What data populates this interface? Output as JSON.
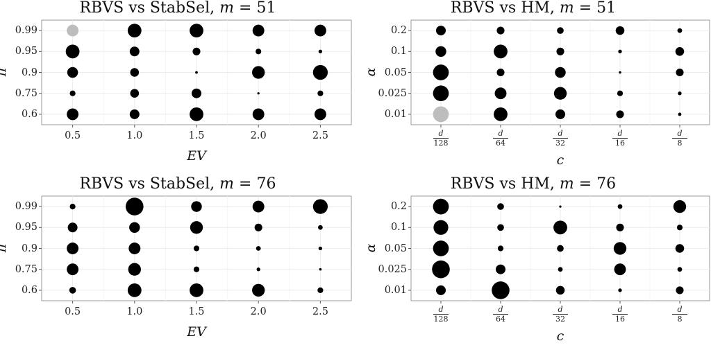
{
  "colors": {
    "panel_bg": "#ffffff",
    "grid": "#ebebeb",
    "point": "#000000",
    "highlight": "#bdbdbd"
  },
  "chart_data": [
    {
      "type": "scatter",
      "title": "RBVS vs StabSel, m = 51",
      "title_parts": {
        "text": "RBVS vs StabSel, ",
        "var": "m",
        "eq": " = 51"
      },
      "xlabel": "EV",
      "ylabel": "π",
      "x_categories": [
        "0.5",
        "1.0",
        "1.5",
        "2.0",
        "2.5"
      ],
      "y_categories": [
        "0.6",
        "0.75",
        "0.9",
        "0.95",
        "0.99"
      ],
      "size_scale": "relative",
      "points": [
        {
          "x": "0.5",
          "y": "0.99",
          "size": 5,
          "highlight": true
        },
        {
          "x": "1.0",
          "y": "0.99",
          "size": 6
        },
        {
          "x": "1.5",
          "y": "0.99",
          "size": 6
        },
        {
          "x": "2.0",
          "y": "0.99",
          "size": 5
        },
        {
          "x": "2.5",
          "y": "0.99",
          "size": 5
        },
        {
          "x": "0.5",
          "y": "0.95",
          "size": 6
        },
        {
          "x": "1.0",
          "y": "0.95",
          "size": 4
        },
        {
          "x": "1.5",
          "y": "0.95",
          "size": 3
        },
        {
          "x": "2.0",
          "y": "0.95",
          "size": 2
        },
        {
          "x": "2.5",
          "y": "0.95",
          "size": 1
        },
        {
          "x": "0.5",
          "y": "0.9",
          "size": 4.5
        },
        {
          "x": "1.0",
          "y": "0.9",
          "size": 3.5
        },
        {
          "x": "1.5",
          "y": "0.9",
          "size": 0.5
        },
        {
          "x": "2.0",
          "y": "0.9",
          "size": 5.5
        },
        {
          "x": "2.5",
          "y": "0.9",
          "size": 6.5
        },
        {
          "x": "0.5",
          "y": "0.75",
          "size": 2
        },
        {
          "x": "1.0",
          "y": "0.75",
          "size": 3.5
        },
        {
          "x": "1.5",
          "y": "0.75",
          "size": 4
        },
        {
          "x": "2.0",
          "y": "0.75",
          "size": 0.3
        },
        {
          "x": "2.5",
          "y": "0.75",
          "size": 2
        },
        {
          "x": "0.5",
          "y": "0.6",
          "size": 5
        },
        {
          "x": "1.0",
          "y": "0.6",
          "size": 4
        },
        {
          "x": "1.5",
          "y": "0.6",
          "size": 6
        },
        {
          "x": "2.0",
          "y": "0.6",
          "size": 5
        },
        {
          "x": "2.5",
          "y": "0.6",
          "size": 5
        }
      ]
    },
    {
      "type": "scatter",
      "title": "RBVS vs HM, m = 51",
      "title_parts": {
        "text": "RBVS vs HM, ",
        "var": "m",
        "eq": " = 51"
      },
      "xlabel": "c",
      "ylabel": "α",
      "x_categories": [
        "d/128",
        "d/64",
        "d/32",
        "d/16",
        "d/8"
      ],
      "x_fractions": [
        [
          "d",
          "128"
        ],
        [
          "d",
          "64"
        ],
        [
          "d",
          "32"
        ],
        [
          "d",
          "16"
        ],
        [
          "d",
          "8"
        ]
      ],
      "y_categories": [
        "0.01",
        "0.025",
        "0.05",
        "0.1",
        "0.2"
      ],
      "size_scale": "relative",
      "points": [
        {
          "x": "d/128",
          "y": "0.2",
          "size": 4
        },
        {
          "x": "d/64",
          "y": "0.2",
          "size": 3
        },
        {
          "x": "d/32",
          "y": "0.2",
          "size": 2.5
        },
        {
          "x": "d/16",
          "y": "0.2",
          "size": 3.5
        },
        {
          "x": "d/8",
          "y": "0.2",
          "size": 1.5
        },
        {
          "x": "d/128",
          "y": "0.1",
          "size": 4.5
        },
        {
          "x": "d/64",
          "y": "0.1",
          "size": 6
        },
        {
          "x": "d/32",
          "y": "0.1",
          "size": 3
        },
        {
          "x": "d/16",
          "y": "0.1",
          "size": 1
        },
        {
          "x": "d/8",
          "y": "0.1",
          "size": 3.5
        },
        {
          "x": "d/128",
          "y": "0.05",
          "size": 7
        },
        {
          "x": "d/64",
          "y": "0.05",
          "size": 3
        },
        {
          "x": "d/32",
          "y": "0.05",
          "size": 4.5
        },
        {
          "x": "d/16",
          "y": "0.05",
          "size": 0.4
        },
        {
          "x": "d/8",
          "y": "0.05",
          "size": 3
        },
        {
          "x": "d/128",
          "y": "0.025",
          "size": 7
        },
        {
          "x": "d/64",
          "y": "0.025",
          "size": 5
        },
        {
          "x": "d/32",
          "y": "0.025",
          "size": 5.5
        },
        {
          "x": "d/16",
          "y": "0.025",
          "size": 2
        },
        {
          "x": "d/8",
          "y": "0.025",
          "size": 1
        },
        {
          "x": "d/128",
          "y": "0.01",
          "size": 7,
          "highlight": true
        },
        {
          "x": "d/64",
          "y": "0.01",
          "size": 6
        },
        {
          "x": "d/32",
          "y": "0.01",
          "size": 4
        },
        {
          "x": "d/16",
          "y": "0.01",
          "size": 3
        },
        {
          "x": "d/8",
          "y": "0.01",
          "size": 0.8
        }
      ]
    },
    {
      "type": "scatter",
      "title": "RBVS vs StabSel, m = 76",
      "title_parts": {
        "text": "RBVS vs StabSel, ",
        "var": "m",
        "eq": " = 76"
      },
      "xlabel": "EV",
      "ylabel": "π",
      "x_categories": [
        "0.5",
        "1.0",
        "1.5",
        "2.0",
        "2.5"
      ],
      "y_categories": [
        "0.6",
        "0.75",
        "0.9",
        "0.95",
        "0.99"
      ],
      "size_scale": "relative",
      "points": [
        {
          "x": "0.5",
          "y": "0.99",
          "size": 2
        },
        {
          "x": "1.0",
          "y": "0.99",
          "size": 8
        },
        {
          "x": "1.5",
          "y": "0.99",
          "size": 4.5
        },
        {
          "x": "2.0",
          "y": "0.99",
          "size": 5
        },
        {
          "x": "2.5",
          "y": "0.99",
          "size": 6.5
        },
        {
          "x": "0.5",
          "y": "0.95",
          "size": 4
        },
        {
          "x": "1.0",
          "y": "0.95",
          "size": 4.5
        },
        {
          "x": "1.5",
          "y": "0.95",
          "size": 5.5
        },
        {
          "x": "2.0",
          "y": "0.95",
          "size": 3
        },
        {
          "x": "2.5",
          "y": "0.95",
          "size": 1.5
        },
        {
          "x": "0.5",
          "y": "0.9",
          "size": 5
        },
        {
          "x": "1.0",
          "y": "0.9",
          "size": 5
        },
        {
          "x": "1.5",
          "y": "0.9",
          "size": 2
        },
        {
          "x": "2.0",
          "y": "0.9",
          "size": 1.5
        },
        {
          "x": "2.5",
          "y": "0.9",
          "size": 1
        },
        {
          "x": "0.5",
          "y": "0.75",
          "size": 5
        },
        {
          "x": "1.0",
          "y": "0.75",
          "size": 5.5
        },
        {
          "x": "1.5",
          "y": "0.75",
          "size": 2
        },
        {
          "x": "2.0",
          "y": "0.75",
          "size": 1
        },
        {
          "x": "2.5",
          "y": "0.75",
          "size": 0.4
        },
        {
          "x": "0.5",
          "y": "0.6",
          "size": 2.5
        },
        {
          "x": "1.0",
          "y": "0.6",
          "size": 6
        },
        {
          "x": "1.5",
          "y": "0.6",
          "size": 6
        },
        {
          "x": "2.0",
          "y": "0.6",
          "size": 5.5
        },
        {
          "x": "2.5",
          "y": "0.6",
          "size": 2
        }
      ]
    },
    {
      "type": "scatter",
      "title": "RBVS vs HM, m = 76",
      "title_parts": {
        "text": "RBVS vs HM, ",
        "var": "m",
        "eq": " = 76"
      },
      "xlabel": "c",
      "ylabel": "α",
      "x_categories": [
        "d/128",
        "d/64",
        "d/32",
        "d/16",
        "d/8"
      ],
      "x_fractions": [
        [
          "d",
          "128"
        ],
        [
          "d",
          "64"
        ],
        [
          "d",
          "32"
        ],
        [
          "d",
          "16"
        ],
        [
          "d",
          "8"
        ]
      ],
      "y_categories": [
        "0.01",
        "0.025",
        "0.05",
        "0.1",
        "0.2"
      ],
      "size_scale": "relative",
      "points": [
        {
          "x": "d/128",
          "y": "0.2",
          "size": 7
        },
        {
          "x": "d/64",
          "y": "0.2",
          "size": 2.5
        },
        {
          "x": "d/32",
          "y": "0.2",
          "size": 0.3
        },
        {
          "x": "d/16",
          "y": "0.2",
          "size": 1.5
        },
        {
          "x": "d/8",
          "y": "0.2",
          "size": 5.5
        },
        {
          "x": "d/128",
          "y": "0.1",
          "size": 6.5
        },
        {
          "x": "d/64",
          "y": "0.1",
          "size": 2.5
        },
        {
          "x": "d/32",
          "y": "0.1",
          "size": 6
        },
        {
          "x": "d/16",
          "y": "0.1",
          "size": 3
        },
        {
          "x": "d/8",
          "y": "0.1",
          "size": 2
        },
        {
          "x": "d/128",
          "y": "0.05",
          "size": 7
        },
        {
          "x": "d/64",
          "y": "0.05",
          "size": 2
        },
        {
          "x": "d/32",
          "y": "0.05",
          "size": 2.5
        },
        {
          "x": "d/16",
          "y": "0.05",
          "size": 5.5
        },
        {
          "x": "d/8",
          "y": "0.05",
          "size": 3.5
        },
        {
          "x": "d/128",
          "y": "0.025",
          "size": 8
        },
        {
          "x": "d/64",
          "y": "0.025",
          "size": 4
        },
        {
          "x": "d/32",
          "y": "0.025",
          "size": 1.5
        },
        {
          "x": "d/16",
          "y": "0.025",
          "size": 5
        },
        {
          "x": "d/8",
          "y": "0.025",
          "size": 1.5
        },
        {
          "x": "d/128",
          "y": "0.01",
          "size": 4
        },
        {
          "x": "d/64",
          "y": "0.01",
          "size": 8
        },
        {
          "x": "d/32",
          "y": "0.01",
          "size": 3.5
        },
        {
          "x": "d/16",
          "y": "0.01",
          "size": 1
        },
        {
          "x": "d/8",
          "y": "0.01",
          "size": 3
        }
      ]
    }
  ]
}
